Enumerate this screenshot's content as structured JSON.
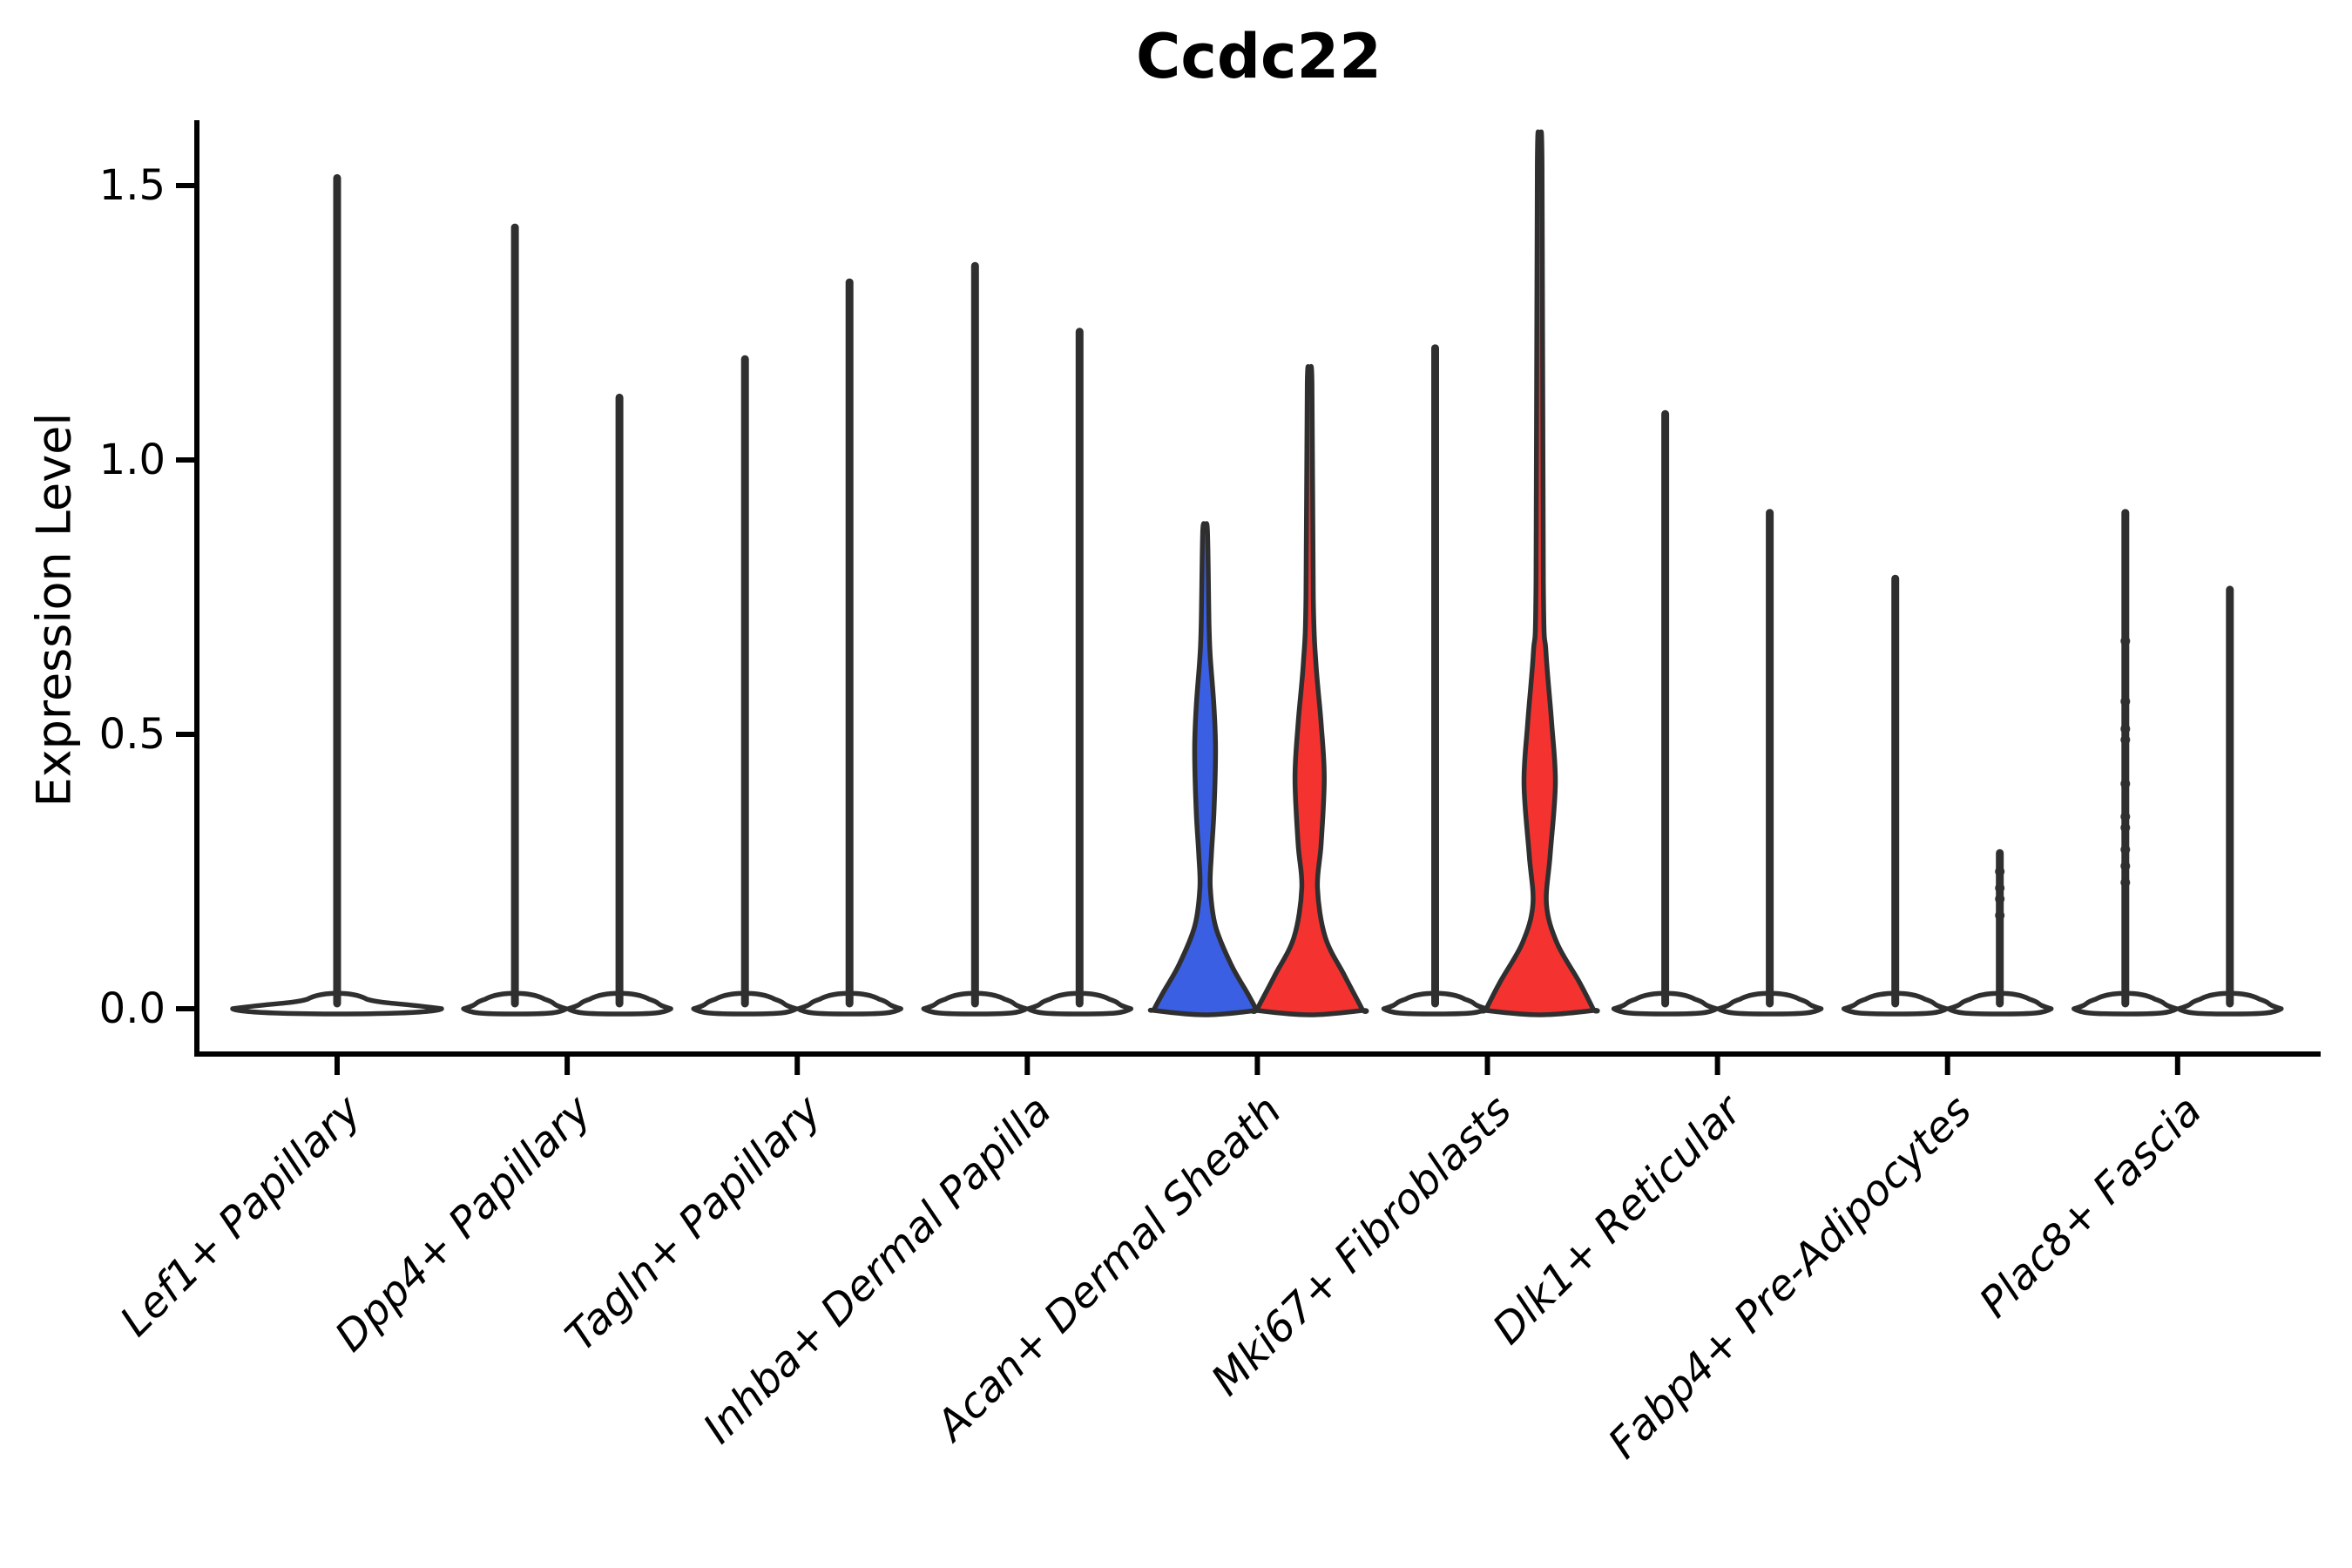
{
  "chart_data": {
    "type": "violin",
    "title": "Ccdc22",
    "ylabel": "Expression Level",
    "ylim": [
      -0.08,
      1.62
    ],
    "grid": false,
    "legend": "none",
    "yticks": [
      {
        "label": "0.0",
        "value": 0.0
      },
      {
        "label": "0.5",
        "value": 0.5
      },
      {
        "label": "1.0",
        "value": 1.0
      },
      {
        "label": "1.5",
        "value": 1.5
      }
    ],
    "categories": [
      "Lef1+ Papillary",
      "Dpp4+ Papillary",
      "Tagln+ Papillary",
      "Inhba+ Dermal Papilla",
      "Acan+ Dermal Sheath",
      "Mki67+ Fibroblasts",
      "Dlk1+ Reticular",
      "Fabp4+ Pre-Adipocytes",
      "Plac8+ Fascia"
    ],
    "series": [
      "left",
      "right"
    ],
    "palette": {
      "blue": "#3B5FE3",
      "red": "#F43331",
      "default_fill": "#FFFFFF",
      "stroke": "#2F2F2F",
      "axis": "#000000"
    },
    "violins": [
      {
        "category": "Lef1+ Papillary",
        "side": "center",
        "span": "full",
        "max": 1.52,
        "fill": "default"
      },
      {
        "category": "Dpp4+ Papillary",
        "side": "left",
        "max": 1.43,
        "fill": "default"
      },
      {
        "category": "Dpp4+ Papillary",
        "side": "right",
        "max": 1.12,
        "fill": "default"
      },
      {
        "category": "Tagln+ Papillary",
        "side": "left",
        "max": 1.19,
        "fill": "default"
      },
      {
        "category": "Tagln+ Papillary",
        "side": "right",
        "max": 1.33,
        "fill": "default"
      },
      {
        "category": "Inhba+ Dermal Papilla",
        "side": "left",
        "max": 1.36,
        "fill": "default"
      },
      {
        "category": "Inhba+ Dermal Papilla",
        "side": "right",
        "max": 1.24,
        "fill": "default"
      },
      {
        "category": "Acan+ Dermal Sheath",
        "side": "left",
        "max": 0.87,
        "fill": "blue",
        "profile": [
          [
            0.87,
            0.045
          ],
          [
            0.7,
            0.075
          ],
          [
            0.64,
            0.1
          ],
          [
            0.55,
            0.17
          ],
          [
            0.47,
            0.2
          ],
          [
            0.36,
            0.17
          ],
          [
            0.28,
            0.12
          ],
          [
            0.22,
            0.1
          ],
          [
            0.15,
            0.2
          ],
          [
            0.08,
            0.5
          ],
          [
            0.03,
            0.8
          ],
          [
            0.0,
            0.97
          ]
        ]
      },
      {
        "category": "Acan+ Dermal Sheath",
        "side": "right",
        "max": 1.14,
        "fill": "red",
        "profile": [
          [
            1.14,
            0.045
          ],
          [
            0.75,
            0.07
          ],
          [
            0.63,
            0.12
          ],
          [
            0.52,
            0.22
          ],
          [
            0.42,
            0.28
          ],
          [
            0.3,
            0.22
          ],
          [
            0.22,
            0.15
          ],
          [
            0.13,
            0.3
          ],
          [
            0.06,
            0.67
          ],
          [
            0.0,
            1.0
          ]
        ]
      },
      {
        "category": "Mki67+ Fibroblasts",
        "side": "left",
        "max": 1.21,
        "fill": "default"
      },
      {
        "category": "Mki67+ Fibroblasts",
        "side": "right",
        "max": 1.54,
        "fill": "red",
        "profile": [
          [
            1.54,
            0.045
          ],
          [
            0.78,
            0.07
          ],
          [
            0.65,
            0.12
          ],
          [
            0.52,
            0.23
          ],
          [
            0.41,
            0.3
          ],
          [
            0.28,
            0.2
          ],
          [
            0.19,
            0.13
          ],
          [
            0.12,
            0.33
          ],
          [
            0.05,
            0.75
          ],
          [
            0.0,
            1.02
          ]
        ]
      },
      {
        "category": "Dlk1+ Reticular",
        "side": "left",
        "max": 1.09,
        "fill": "default"
      },
      {
        "category": "Dlk1+ Reticular",
        "side": "right",
        "max": 0.91,
        "fill": "default"
      },
      {
        "category": "Fabp4+ Pre-Adipocytes",
        "side": "left",
        "max": 0.79,
        "fill": "default"
      },
      {
        "category": "Fabp4+ Pre-Adipocytes",
        "side": "right",
        "max": 0.29,
        "fill": "default",
        "dots": [
          0.25,
          0.22,
          0.2,
          0.17
        ]
      },
      {
        "category": "Plac8+ Fascia",
        "side": "left",
        "max": 0.91,
        "fill": "default",
        "dots": [
          0.67,
          0.56,
          0.51,
          0.49,
          0.41,
          0.35,
          0.33,
          0.29,
          0.26,
          0.23
        ]
      },
      {
        "category": "Plac8+ Fascia",
        "side": "right",
        "max": 0.77,
        "fill": "default"
      }
    ]
  }
}
